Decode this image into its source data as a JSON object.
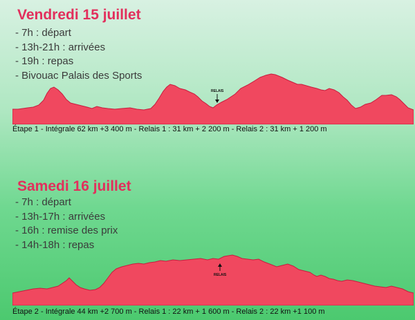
{
  "day1": {
    "title": "Vendredi 15 juillet",
    "items": [
      "- 7h : départ",
      "- 13h-21h : arrivées",
      "- 19h : repas",
      "- Bivouac Palais des Sports"
    ],
    "relais_label": "RELAIS",
    "caption": "Étape 1 - Intégrale 62 km +3 400 m - Relais 1 : 31 km + 2 200 m - Relais 2 : 31 km + 1 200 m"
  },
  "day2": {
    "title": "Samedi 16 juillet",
    "items": [
      "- 7h : départ",
      "- 13h-17h : arrivées",
      "- 16h : remise des prix",
      "- 14h-18h : repas"
    ],
    "relais_label": "RELAIS",
    "caption": "Étape 2 - Intégrale 44 km +2 700 m - Relais 1 : 22 km + 1 600 m - Relais 2 : 22 km +1 100 m"
  },
  "colors": {
    "title": "#e22f5c",
    "profile_fill": "#f0485f",
    "profile_stroke": "#c71d3f"
  }
}
